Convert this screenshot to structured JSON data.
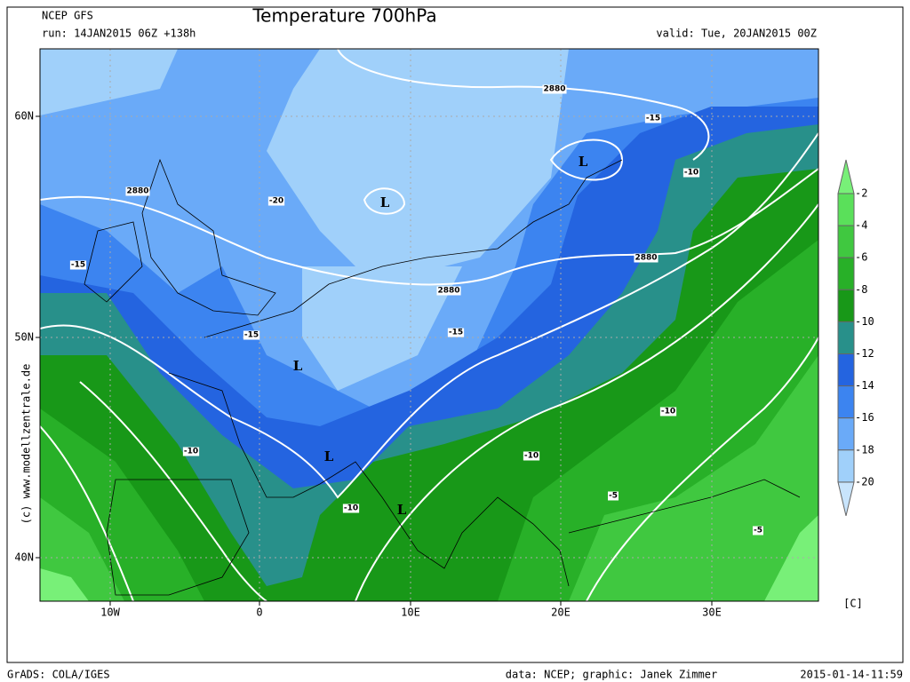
{
  "header": {
    "model": "NCEP GFS",
    "run": "run: 14JAN2015 06Z +138h",
    "title": "Temperature 700hPa",
    "valid": "valid: Tue, 20JAN2015 00Z"
  },
  "credit": "(c) www.modellzentrale.de",
  "axes": {
    "lat": [
      "60N",
      "50N",
      "40N"
    ],
    "lon": [
      "10W",
      "0",
      "10E",
      "20E",
      "30E"
    ]
  },
  "map_labels": [
    2880,
    2880,
    2880,
    2880,
    -20,
    -15,
    -15,
    -15,
    -15,
    -10,
    -10,
    -10,
    -10,
    -10,
    -5,
    -5,
    "L",
    "L",
    "L",
    "L",
    "L"
  ],
  "colorbar": {
    "unit": "[C]",
    "levels": [
      -2,
      -4,
      -6,
      -8,
      -10,
      -12,
      -14,
      -16,
      -18,
      -20
    ]
  },
  "footer": {
    "left": "GrADS: COLA/IGES",
    "center": "data: NCEP; graphic: Janek Zimmer",
    "right": "2015-01-14-11:59"
  }
}
